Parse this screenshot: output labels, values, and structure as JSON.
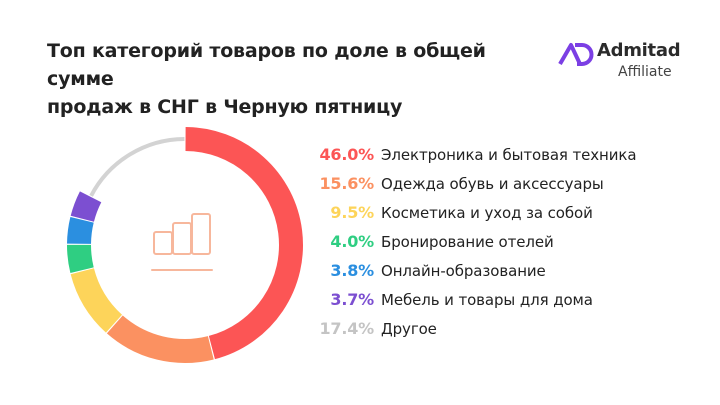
{
  "title": {
    "line1": "Топ категорий товаров по доле в общей сумме",
    "line2": "продаж в СНГ в Черную пятницу"
  },
  "brand": {
    "name": "Admitad",
    "sub": "Affiliate",
    "color": "#7b3fe4"
  },
  "center_icon": "bar-chart-icon",
  "chart_data": {
    "type": "pie",
    "categories": [
      "Электроника и бытовая техника",
      "Одежда обувь и аксессуары",
      "Косметика и уход за собой",
      "Бронирование отелей",
      "Онлайн-образование",
      "Мебель и товары для дома",
      "Другое"
    ],
    "values": [
      46.0,
      15.6,
      9.5,
      4.0,
      3.8,
      3.7,
      17.4
    ],
    "value_labels": [
      "46.0%",
      "15.6%",
      "9.5%",
      "4.0%",
      "3.8%",
      "3.7%",
      "17.4%"
    ],
    "colors": [
      "#fc5555",
      "#fb9161",
      "#fdd45a",
      "#2fce82",
      "#2b8fe0",
      "#7c4fd1",
      "#d3d3d3"
    ],
    "legend_position": "right",
    "style": "donut"
  }
}
